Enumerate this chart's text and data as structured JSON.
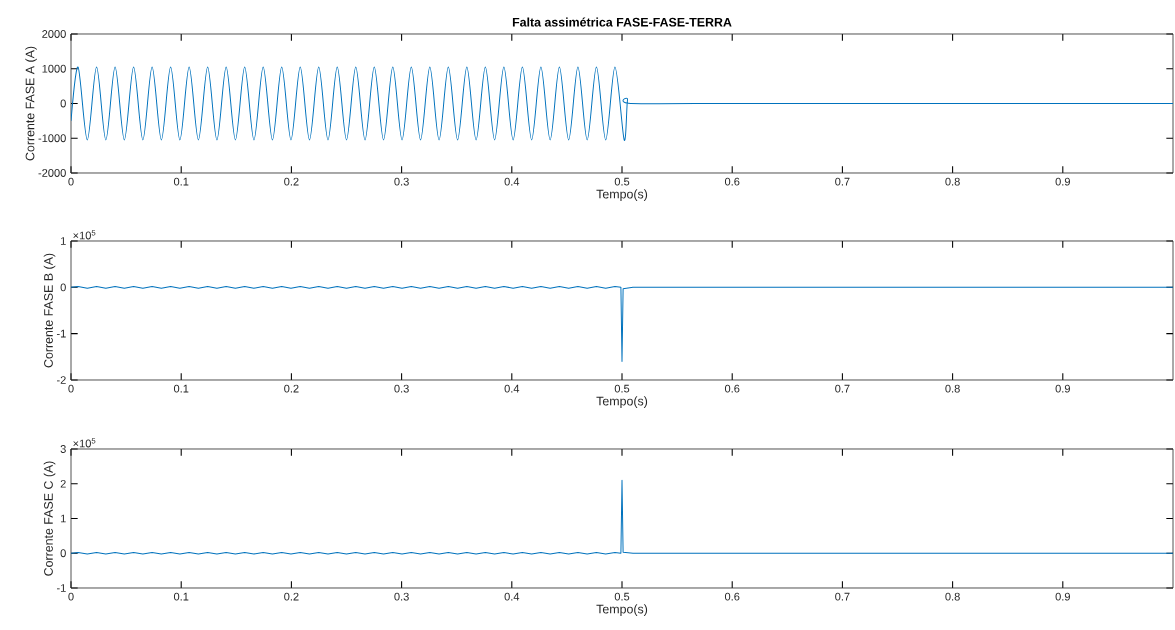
{
  "chart_data": [
    {
      "type": "line",
      "title": "Falta assimétrica FASE-FASE-TERRA",
      "xlabel": "Tempo(s)",
      "ylabel": "Corrente FASE  A (A)",
      "x": [
        0,
        0.0064,
        0.0148,
        0.0232,
        0.0316,
        0.04,
        0.0484,
        0.0568,
        0.0652,
        0.0736,
        0.082,
        0.0904,
        0.0988,
        0.1072,
        0.1156,
        0.124,
        0.1324,
        0.1408,
        0.1492,
        0.1576,
        0.166,
        0.1744,
        0.1828,
        0.1912,
        0.1996,
        0.208,
        0.2164,
        0.2248,
        0.2332,
        0.2416,
        0.25,
        0.2584,
        0.2668,
        0.2752,
        0.2836,
        0.292,
        0.3004,
        0.3088,
        0.3172,
        0.3256,
        0.334,
        0.3424,
        0.3508,
        0.3592,
        0.3676,
        0.376,
        0.3844,
        0.3928,
        0.4012,
        0.4096,
        0.418,
        0.4264,
        0.4348,
        0.4432,
        0.4516,
        0.46,
        0.4684,
        0.4768,
        0.4852,
        0.4936,
        0.502,
        0.505,
        0.508,
        0.6,
        0.7,
        0.8,
        0.9,
        1.0
      ],
      "series": [
        {
          "color": "#0072bd",
          "values": [
            -500,
            1050,
            -1050,
            1050,
            -1050,
            1050,
            -1050,
            1050,
            -1050,
            1050,
            -1050,
            1050,
            -1050,
            1050,
            -1050,
            1050,
            -1050,
            1050,
            -1050,
            1050,
            -1050,
            1050,
            -1050,
            1050,
            -1050,
            1050,
            -1050,
            1050,
            -1050,
            1050,
            -1050,
            1050,
            -1050,
            1050,
            -1050,
            1050,
            -1050,
            1050,
            -1050,
            1050,
            -1050,
            1050,
            -1050,
            1050,
            -1050,
            1050,
            -1050,
            1050,
            -1050,
            1050,
            -1050,
            1050,
            -1050,
            1050,
            -1050,
            1050,
            -1050,
            1050,
            -1050,
            1050,
            -1050,
            100,
            0,
            0,
            0,
            0,
            0,
            0
          ]
        }
      ],
      "xlim": [
        0,
        1
      ],
      "ylim": [
        -2000,
        2000
      ],
      "xticks": [
        0,
        0.1,
        0.2,
        0.3,
        0.4,
        0.5,
        0.6,
        0.7,
        0.8,
        0.9
      ],
      "yticks": [
        -2000,
        -1000,
        0,
        1000,
        2000
      ]
    },
    {
      "type": "line",
      "xlabel": "Tempo(s)",
      "ylabel": "Corrente FASE  B (A)",
      "annotations": [
        "×10$^{5}$"
      ],
      "x": [
        0,
        0.0064,
        0.0148,
        0.0232,
        0.0316,
        0.04,
        0.0484,
        0.0568,
        0.0652,
        0.0736,
        0.082,
        0.0904,
        0.0988,
        0.1072,
        0.1156,
        0.124,
        0.1324,
        0.1408,
        0.1492,
        0.1576,
        0.166,
        0.1744,
        0.1828,
        0.1912,
        0.1996,
        0.208,
        0.2164,
        0.2248,
        0.2332,
        0.2416,
        0.25,
        0.2584,
        0.2668,
        0.2752,
        0.2836,
        0.292,
        0.3004,
        0.3088,
        0.3172,
        0.3256,
        0.334,
        0.3424,
        0.3508,
        0.3592,
        0.3676,
        0.376,
        0.3844,
        0.3928,
        0.4012,
        0.4096,
        0.418,
        0.4264,
        0.4348,
        0.4432,
        0.4516,
        0.46,
        0.4684,
        0.4768,
        0.4852,
        0.4936,
        0.499,
        0.5,
        0.501,
        0.51,
        0.6,
        0.7,
        0.8,
        0.9,
        1.0
      ],
      "series": [
        {
          "color": "#0072bd",
          "values": [
            0,
            0.02,
            -0.02,
            0.02,
            -0.02,
            0.02,
            -0.02,
            0.02,
            -0.02,
            0.02,
            -0.02,
            0.02,
            -0.02,
            0.02,
            -0.02,
            0.02,
            -0.02,
            0.02,
            -0.02,
            0.02,
            -0.02,
            0.02,
            -0.02,
            0.02,
            -0.02,
            0.02,
            -0.02,
            0.02,
            -0.02,
            0.02,
            -0.02,
            0.02,
            -0.02,
            0.02,
            -0.02,
            0.02,
            -0.02,
            0.02,
            -0.02,
            0.02,
            -0.02,
            0.02,
            -0.02,
            0.02,
            -0.02,
            0.02,
            -0.02,
            0.02,
            -0.02,
            0.02,
            -0.02,
            0.02,
            -0.02,
            0.02,
            -0.02,
            0.02,
            -0.02,
            0.02,
            -0.02,
            0.02,
            0,
            -1.6,
            -0.03,
            0,
            0,
            0,
            0,
            0,
            0
          ]
        }
      ],
      "xlim": [
        0,
        1
      ],
      "ylim": [
        -2,
        1
      ],
      "xticks": [
        0,
        0.1,
        0.2,
        0.3,
        0.4,
        0.5,
        0.6,
        0.7,
        0.8,
        0.9
      ],
      "yticks": [
        -2,
        -1,
        0,
        1
      ]
    },
    {
      "type": "line",
      "xlabel": "Tempo(s)",
      "ylabel": "Corrente FASE  C (A)",
      "annotations": [
        "×10$^{5}$"
      ],
      "x": [
        0,
        0.0064,
        0.0148,
        0.0232,
        0.0316,
        0.04,
        0.0484,
        0.0568,
        0.0652,
        0.0736,
        0.082,
        0.0904,
        0.0988,
        0.1072,
        0.1156,
        0.124,
        0.1324,
        0.1408,
        0.1492,
        0.1576,
        0.166,
        0.1744,
        0.1828,
        0.1912,
        0.1996,
        0.208,
        0.2164,
        0.2248,
        0.2332,
        0.2416,
        0.25,
        0.2584,
        0.2668,
        0.2752,
        0.2836,
        0.292,
        0.3004,
        0.3088,
        0.3172,
        0.3256,
        0.334,
        0.3424,
        0.3508,
        0.3592,
        0.3676,
        0.376,
        0.3844,
        0.3928,
        0.4012,
        0.4096,
        0.418,
        0.4264,
        0.4348,
        0.4432,
        0.4516,
        0.46,
        0.4684,
        0.4768,
        0.4852,
        0.4936,
        0.499,
        0.5,
        0.501,
        0.51,
        0.6,
        0.7,
        0.8,
        0.9,
        1.0
      ],
      "series": [
        {
          "color": "#0072bd",
          "values": [
            0,
            0.02,
            -0.02,
            0.02,
            -0.02,
            0.02,
            -0.02,
            0.02,
            -0.02,
            0.02,
            -0.02,
            0.02,
            -0.02,
            0.02,
            -0.02,
            0.02,
            -0.02,
            0.02,
            -0.02,
            0.02,
            -0.02,
            0.02,
            -0.02,
            0.02,
            -0.02,
            0.02,
            -0.02,
            0.02,
            -0.02,
            0.02,
            -0.02,
            0.02,
            -0.02,
            0.02,
            -0.02,
            0.02,
            -0.02,
            0.02,
            -0.02,
            0.02,
            -0.02,
            0.02,
            -0.02,
            0.02,
            -0.02,
            0.02,
            -0.02,
            0.02,
            -0.02,
            0.02,
            -0.02,
            0.02,
            -0.02,
            0.02,
            -0.02,
            0.02,
            -0.02,
            0.02,
            -0.02,
            0.02,
            0,
            2.1,
            0.03,
            0,
            0,
            0,
            0,
            0,
            0
          ]
        }
      ],
      "xlim": [
        0,
        1
      ],
      "ylim": [
        -1,
        3
      ],
      "xticks": [
        0,
        0.1,
        0.2,
        0.3,
        0.4,
        0.5,
        0.6,
        0.7,
        0.8,
        0.9
      ],
      "yticks": [
        -1,
        0,
        1,
        2,
        3
      ]
    }
  ]
}
